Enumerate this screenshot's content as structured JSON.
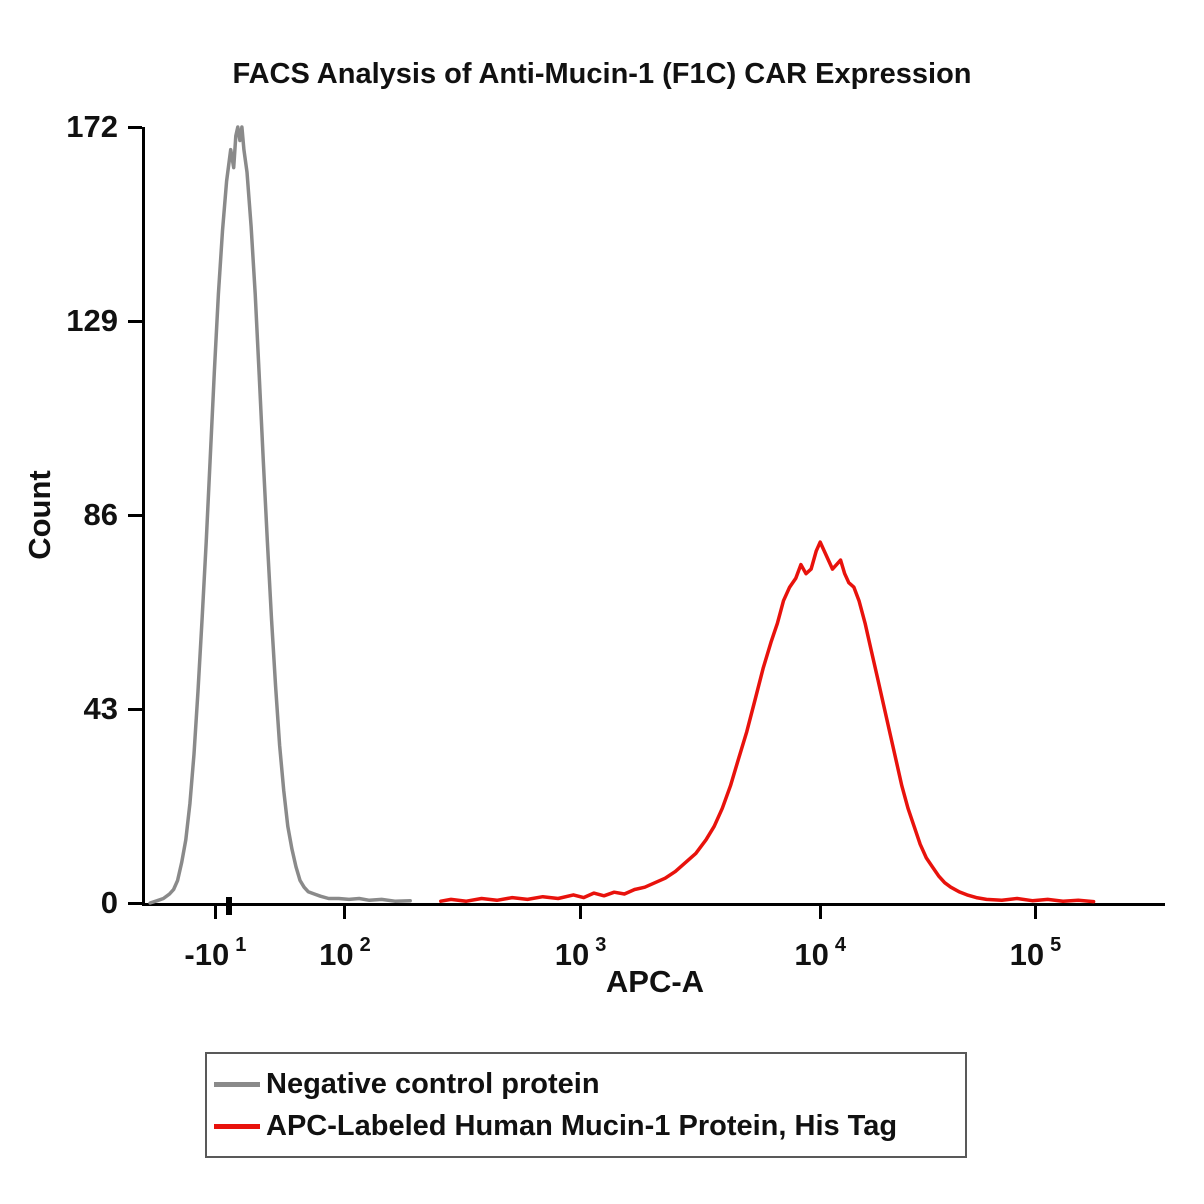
{
  "chart_data": {
    "type": "line",
    "chart_kind": "flow-cytometry-histogram",
    "title": "FACS Analysis of Anti-Mucin-1 (F1C) CAR Expression",
    "xlabel": "APC-A",
    "ylabel": "Count",
    "x_scale": "biexponential log decades",
    "ylim": [
      0,
      172
    ],
    "yticks": [
      0,
      43,
      86,
      129,
      172
    ],
    "xticks": [
      {
        "base": "-10",
        "exp": "1",
        "pos": 0.069,
        "bold": false
      },
      {
        "base": "",
        "exp": "",
        "pos": 0.082,
        "bold": true
      },
      {
        "base": "10",
        "exp": "2",
        "pos": 0.196,
        "bold": false
      },
      {
        "base": "10",
        "exp": "3",
        "pos": 0.427,
        "bold": false
      },
      {
        "base": "10",
        "exp": "4",
        "pos": 0.662,
        "bold": false
      },
      {
        "base": "10",
        "exp": "5",
        "pos": 0.873,
        "bold": false
      }
    ],
    "grid": false,
    "legend_position": "bottom",
    "series": [
      {
        "id": "negative-control",
        "name": "Negative control protein",
        "color": "#8a8a8a",
        "peak_count": 172,
        "peak_near_tick": "10^1",
        "points": [
          [
            0.005,
            0
          ],
          [
            0.012,
            0.5
          ],
          [
            0.018,
            1
          ],
          [
            0.024,
            2
          ],
          [
            0.028,
            3
          ],
          [
            0.032,
            5
          ],
          [
            0.036,
            9
          ],
          [
            0.04,
            14
          ],
          [
            0.044,
            22
          ],
          [
            0.048,
            33
          ],
          [
            0.052,
            47
          ],
          [
            0.056,
            63
          ],
          [
            0.06,
            80
          ],
          [
            0.064,
            99
          ],
          [
            0.068,
            118
          ],
          [
            0.072,
            135
          ],
          [
            0.076,
            149
          ],
          [
            0.08,
            160
          ],
          [
            0.084,
            167
          ],
          [
            0.087,
            163
          ],
          [
            0.089,
            170
          ],
          [
            0.091,
            172
          ],
          [
            0.093,
            169
          ],
          [
            0.095,
            172
          ],
          [
            0.097,
            167
          ],
          [
            0.1,
            162
          ],
          [
            0.104,
            150
          ],
          [
            0.108,
            135
          ],
          [
            0.112,
            117
          ],
          [
            0.116,
            98
          ],
          [
            0.12,
            80
          ],
          [
            0.124,
            63
          ],
          [
            0.128,
            48
          ],
          [
            0.132,
            35
          ],
          [
            0.136,
            25
          ],
          [
            0.14,
            17
          ],
          [
            0.144,
            12
          ],
          [
            0.148,
            8
          ],
          [
            0.152,
            5
          ],
          [
            0.156,
            3.5
          ],
          [
            0.16,
            2.5
          ],
          [
            0.166,
            2
          ],
          [
            0.172,
            1.5
          ],
          [
            0.18,
            1
          ],
          [
            0.19,
            1
          ],
          [
            0.2,
            0.8
          ],
          [
            0.21,
            1
          ],
          [
            0.22,
            0.6
          ],
          [
            0.232,
            0.8
          ],
          [
            0.245,
            0.4
          ],
          [
            0.26,
            0.5
          ]
        ]
      },
      {
        "id": "apc-mucin1",
        "name": "APC-Labeled Human Mucin-1 Protein, His Tag",
        "color": "#e8120c",
        "peak_count": 80,
        "peak_near_tick": "10^4",
        "points": [
          [
            0.29,
            0.4
          ],
          [
            0.3,
            0.8
          ],
          [
            0.315,
            0.4
          ],
          [
            0.33,
            1
          ],
          [
            0.345,
            0.6
          ],
          [
            0.36,
            1.2
          ],
          [
            0.375,
            0.8
          ],
          [
            0.39,
            1.4
          ],
          [
            0.405,
            1
          ],
          [
            0.42,
            1.8
          ],
          [
            0.43,
            1.2
          ],
          [
            0.44,
            2.2
          ],
          [
            0.45,
            1.6
          ],
          [
            0.46,
            2.4
          ],
          [
            0.47,
            2
          ],
          [
            0.48,
            3
          ],
          [
            0.49,
            3.5
          ],
          [
            0.5,
            4.5
          ],
          [
            0.51,
            5.5
          ],
          [
            0.52,
            7
          ],
          [
            0.53,
            9
          ],
          [
            0.54,
            11
          ],
          [
            0.55,
            14
          ],
          [
            0.558,
            17
          ],
          [
            0.566,
            21
          ],
          [
            0.574,
            26
          ],
          [
            0.582,
            32
          ],
          [
            0.59,
            38
          ],
          [
            0.598,
            45
          ],
          [
            0.606,
            52
          ],
          [
            0.614,
            58
          ],
          [
            0.62,
            62
          ],
          [
            0.626,
            67
          ],
          [
            0.632,
            70
          ],
          [
            0.638,
            72
          ],
          [
            0.643,
            75
          ],
          [
            0.648,
            73
          ],
          [
            0.653,
            74
          ],
          [
            0.658,
            78
          ],
          [
            0.662,
            80
          ],
          [
            0.666,
            78
          ],
          [
            0.67,
            76
          ],
          [
            0.674,
            74
          ],
          [
            0.678,
            75
          ],
          [
            0.682,
            76
          ],
          [
            0.686,
            73
          ],
          [
            0.69,
            71
          ],
          [
            0.695,
            70
          ],
          [
            0.7,
            67
          ],
          [
            0.706,
            62
          ],
          [
            0.712,
            56
          ],
          [
            0.718,
            50
          ],
          [
            0.724,
            44
          ],
          [
            0.73,
            38
          ],
          [
            0.736,
            32
          ],
          [
            0.742,
            26
          ],
          [
            0.748,
            21
          ],
          [
            0.754,
            17
          ],
          [
            0.76,
            13
          ],
          [
            0.766,
            10
          ],
          [
            0.772,
            8
          ],
          [
            0.778,
            6
          ],
          [
            0.784,
            4.5
          ],
          [
            0.79,
            3.5
          ],
          [
            0.798,
            2.5
          ],
          [
            0.806,
            1.8
          ],
          [
            0.815,
            1.2
          ],
          [
            0.825,
            0.8
          ],
          [
            0.84,
            0.6
          ],
          [
            0.855,
            1
          ],
          [
            0.87,
            0.5
          ],
          [
            0.885,
            0.8
          ],
          [
            0.9,
            0.4
          ],
          [
            0.915,
            0.6
          ],
          [
            0.93,
            0.3
          ]
        ]
      }
    ]
  },
  "legend": {
    "items": [
      {
        "label": "Negative control protein",
        "color": "#8a8a8a"
      },
      {
        "label": "APC-Labeled Human Mucin-1 Protein, His Tag",
        "color": "#e8120c"
      }
    ]
  }
}
